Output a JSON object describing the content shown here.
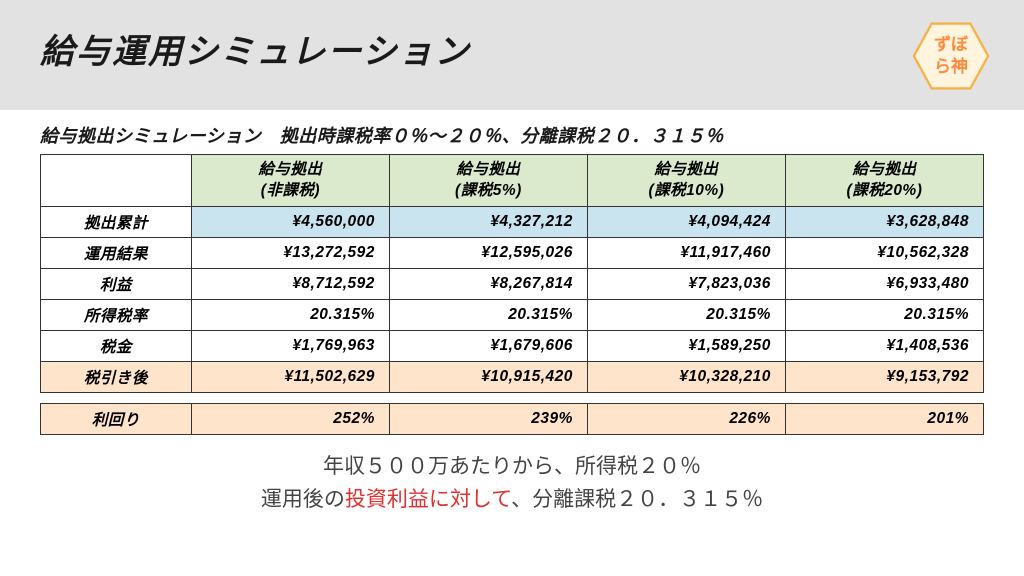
{
  "title": "給与運用シミュレーション",
  "logo": {
    "line1": "ずぼ",
    "line2": "ら神",
    "fill": "#fff5df",
    "stroke": "#f5b24a",
    "textColor": "#ff8a3c"
  },
  "subtitle": "給与拠出シミュレーション　拠出時課税率０％〜２０％、分離課税２０．３１５％",
  "colors": {
    "headerBand": "#e2e2e2",
    "colHeadBg": "#dbe9cc",
    "rowBlueBg": "#c9e4ef",
    "rowPeachBg": "#ffe4cc",
    "border": "#333333",
    "text": "#1a1a1a",
    "noteText": "#444444",
    "noteRed": "#e03030"
  },
  "columns": [
    {
      "line1": "給与拠出",
      "line2": "(非課税)"
    },
    {
      "line1": "給与拠出",
      "line2": "(課税5%)"
    },
    {
      "line1": "給与拠出",
      "line2": "(課税10%)"
    },
    {
      "line1": "給与拠出",
      "line2": "(課税20%)"
    }
  ],
  "rows": [
    {
      "label": "拠出累計",
      "style": "blue",
      "cells": [
        "¥4,560,000",
        "¥4,327,212",
        "¥4,094,424",
        "¥3,628,848"
      ]
    },
    {
      "label": "運用結果",
      "style": "white",
      "cells": [
        "¥13,272,592",
        "¥12,595,026",
        "¥11,917,460",
        "¥10,562,328"
      ]
    },
    {
      "label": "利益",
      "style": "white",
      "cells": [
        "¥8,712,592",
        "¥8,267,814",
        "¥7,823,036",
        "¥6,933,480"
      ]
    },
    {
      "label": "所得税率",
      "style": "white",
      "cells": [
        "20.315%",
        "20.315%",
        "20.315%",
        "20.315%"
      ]
    },
    {
      "label": "税金",
      "style": "white",
      "cells": [
        "¥1,769,963",
        "¥1,679,606",
        "¥1,589,250",
        "¥1,408,536"
      ]
    },
    {
      "label": "税引き後",
      "style": "peach",
      "cells": [
        "¥11,502,629",
        "¥10,915,420",
        "¥10,328,210",
        "¥9,153,792"
      ]
    }
  ],
  "yieldRow": {
    "label": "利回り",
    "style": "peach",
    "cells": [
      "252%",
      "239%",
      "226%",
      "201%"
    ]
  },
  "notes": {
    "line1": "年収５００万あたりから、所得税２０％",
    "line2_pre": "運用後の",
    "line2_red": "投資利益に対して",
    "line2_post": "、分離課税２０．３１５％"
  }
}
